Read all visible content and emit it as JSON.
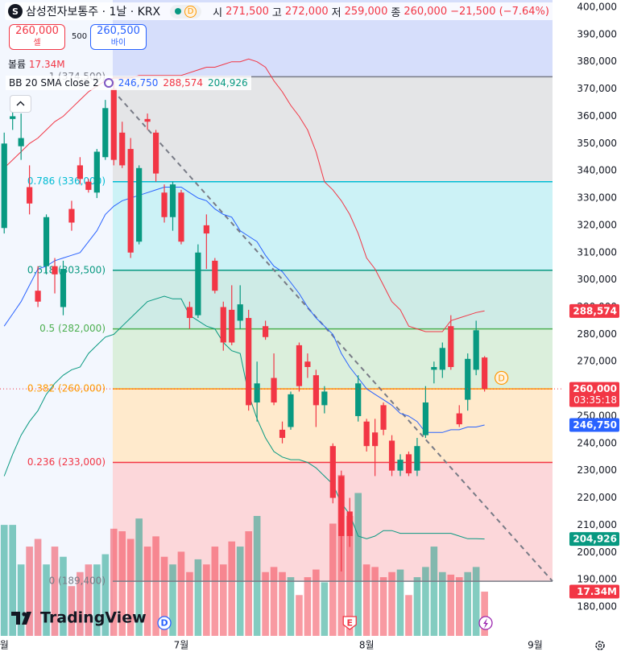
{
  "header": {
    "symbol_icon": "S",
    "title": "삼성전자보통주 · 1날 · KRX",
    "badge": "D",
    "open_label": "시",
    "open": "271,500",
    "high_label": "고",
    "high": "272,000",
    "low_label": "저",
    "low": "259,000",
    "close_label": "종",
    "close": "260,000",
    "change": "−21,500 (−7.64%)"
  },
  "trade": {
    "sell_price": "260,000",
    "sell_label": "셀",
    "spread": "500",
    "buy_price": "260,500",
    "buy_label": "바이"
  },
  "branding": "TradingView",
  "chart_data": {
    "type": "candlestick",
    "volume_label": "볼륨",
    "volume_value_label": "17.34M",
    "indicator": "BB 20 SMA close 2",
    "countdown": "03:35:18",
    "pending_marker": "D",
    "up_color": "#089981",
    "down_color": "#f23645",
    "xlim": [
      -0.5,
      66.4
    ],
    "xticks": [
      {
        "value": 0,
        "label": "월"
      },
      {
        "value": 21,
        "label": "7월"
      },
      {
        "value": 43,
        "label": "8월"
      },
      {
        "value": 63,
        "label": "9월"
      }
    ],
    "ylim": [
      180000,
      400000
    ],
    "yticks": [
      {
        "value": 400000,
        "label": "400,000"
      },
      {
        "value": 390000,
        "label": "390,000"
      },
      {
        "value": 380000,
        "label": "380,000"
      },
      {
        "value": 370000,
        "label": "370,000"
      },
      {
        "value": 360000,
        "label": "360,000"
      },
      {
        "value": 350000,
        "label": "350,000"
      },
      {
        "value": 340000,
        "label": "340,000"
      },
      {
        "value": 330000,
        "label": "330,000"
      },
      {
        "value": 320000,
        "label": "320,000"
      },
      {
        "value": 310000,
        "label": "310,000"
      },
      {
        "value": 300000,
        "label": "300,000"
      },
      {
        "value": 290000,
        "label": "290,000"
      },
      {
        "value": 280000,
        "label": "280,000"
      },
      {
        "value": 270000,
        "label": "270,000"
      },
      {
        "value": 260000,
        "label": "260,000"
      },
      {
        "value": 250000,
        "label": "250,000"
      },
      {
        "value": 240000,
        "label": "240,000"
      },
      {
        "value": 230000,
        "label": "230,000"
      },
      {
        "value": 220000,
        "label": "220,000"
      },
      {
        "value": 210000,
        "label": "210,000"
      },
      {
        "value": 200000,
        "label": "200,000"
      },
      {
        "value": 190000,
        "label": "190,000"
      },
      {
        "value": 180000,
        "label": "180,000"
      }
    ],
    "open": [
      319000,
      359000,
      349000,
      334000,
      296000,
      305000,
      305000,
      290000,
      326000,
      342000,
      336000,
      332000,
      345000,
      370000,
      354000,
      348000,
      314000,
      359000,
      354000,
      332000,
      323000,
      332000,
      290000,
      287000,
      320000,
      307000,
      290000,
      289000,
      285000,
      286000,
      255000,
      283000,
      264000,
      245000,
      246000,
      276000,
      270000,
      265000,
      254000,
      239000,
      228000,
      215000,
      250000,
      248000,
      244000,
      254000,
      241000,
      230000,
      236000,
      230000,
      243000,
      267000,
      267000,
      283000,
      251000,
      256000,
      267000,
      271500
    ],
    "high": [
      354000,
      364000,
      361000,
      342000,
      305000,
      324000,
      308000,
      307000,
      329000,
      345000,
      337000,
      348000,
      366000,
      373000,
      358000,
      352000,
      342000,
      361000,
      355000,
      335000,
      336000,
      333000,
      292000,
      313000,
      324000,
      308000,
      292000,
      298000,
      298000,
      289000,
      270000,
      285000,
      273000,
      248000,
      259000,
      277000,
      273000,
      267000,
      261000,
      240000,
      230000,
      220000,
      265000,
      249000,
      249000,
      255000,
      243000,
      236000,
      237000,
      242000,
      261000,
      270000,
      277000,
      287000,
      254000,
      273000,
      285000,
      272000
    ],
    "low": [
      317000,
      355000,
      344000,
      324000,
      290000,
      302000,
      295000,
      287000,
      318000,
      335000,
      332000,
      330000,
      344000,
      342000,
      341000,
      308000,
      313000,
      355000,
      336000,
      321000,
      318000,
      313000,
      282000,
      286000,
      304000,
      295000,
      274000,
      276000,
      282000,
      252000,
      248000,
      278000,
      254000,
      240000,
      245000,
      259000,
      264000,
      246000,
      251000,
      218000,
      193000,
      202000,
      248000,
      237000,
      228000,
      243000,
      228000,
      228000,
      228000,
      228000,
      242000,
      262000,
      264000,
      267000,
      246000,
      252000,
      265000,
      259000
    ],
    "close": [
      350000,
      360000,
      352000,
      328000,
      292000,
      323000,
      302000,
      304000,
      321000,
      337000,
      333000,
      347000,
      363000,
      344000,
      342000,
      310000,
      341000,
      358000,
      339000,
      323000,
      335000,
      314000,
      286000,
      310000,
      317000,
      296000,
      277000,
      277000,
      291000,
      254000,
      262000,
      279000,
      255000,
      242000,
      258000,
      261000,
      268000,
      254000,
      259000,
      220000,
      206000,
      206000,
      262000,
      239000,
      239000,
      245000,
      230000,
      234000,
      229000,
      239000,
      255000,
      268000,
      275000,
      268000,
      247000,
      271000,
      281500,
      260000
    ],
    "volume_ylim": [
      0,
      100
    ],
    "volume": [
      43.5,
      43.5,
      28,
      35,
      38,
      28,
      35,
      31,
      19.5,
      25,
      28,
      28,
      32,
      42,
      41,
      38,
      46,
      35,
      39,
      31,
      28,
      33,
      25,
      30,
      28,
      35,
      28,
      37,
      35,
      41,
      47,
      25,
      27,
      25,
      23,
      16,
      23,
      26,
      21,
      44,
      63,
      47,
      56,
      28,
      27,
      23,
      25,
      26,
      16,
      23,
      27,
      35,
      25,
      24,
      23,
      25,
      27,
      17.34
    ],
    "series": [
      {
        "color": "#2962ff",
        "last_label": "246,750",
        "values": [
          283000,
          287500,
          292000,
          298000,
          304000,
          305000,
          307000,
          308000,
          309000,
          310000,
          314000,
          318000,
          324000,
          327000,
          329000,
          330000,
          331000,
          332000,
          333000,
          334000,
          334000,
          334000,
          332000,
          330000,
          329000,
          326000,
          324000,
          323000,
          318000,
          316000,
          314000,
          309000,
          305000,
          303000,
          299000,
          295000,
          290000,
          286000,
          283000,
          280000,
          273000,
          268000,
          264000,
          260000,
          258000,
          256000,
          254000,
          251000,
          250000,
          248000,
          244000,
          244000,
          244000,
          245000,
          245000,
          246000,
          246000,
          246750
        ]
      },
      {
        "color": "#f23645",
        "last_label": "288,574",
        "values": [
          341000,
          344000,
          347000,
          350000,
          352000,
          355000,
          358000,
          360000,
          363000,
          366000,
          369000,
          371000,
          373000,
          374000,
          374000,
          374000,
          375000,
          375000,
          375000,
          375000,
          375000,
          375000,
          376000,
          377000,
          378000,
          378000,
          379000,
          380000,
          380000,
          381000,
          380000,
          378000,
          373000,
          369000,
          364000,
          360000,
          355000,
          347000,
          336000,
          333000,
          329000,
          324000,
          317000,
          308000,
          304000,
          298000,
          292000,
          289000,
          283000,
          282000,
          281000,
          281000,
          281000,
          285000,
          286000,
          287000,
          288000,
          288574
        ]
      },
      {
        "color": "#089981",
        "last_label": "204,926",
        "values": [
          228000,
          236000,
          243000,
          248000,
          252000,
          258000,
          262000,
          265000,
          267000,
          268000,
          273000,
          276000,
          279000,
          280000,
          283000,
          286000,
          289000,
          292000,
          293000,
          294000,
          293000,
          293000,
          287000,
          285000,
          283000,
          282000,
          277000,
          274000,
          273000,
          258000,
          249000,
          242000,
          237000,
          235000,
          234000,
          234000,
          233000,
          231000,
          228000,
          225000,
          218000,
          214000,
          206000,
          205000,
          206000,
          208000,
          208000,
          207000,
          207000,
          207000,
          207000,
          207000,
          207000,
          207000,
          206000,
          205000,
          205000,
          204926
        ]
      }
    ],
    "fib": [
      {
        "value": 374500,
        "label": "1 (374,500)",
        "color": "#787b86"
      },
      {
        "value": 336000,
        "label": "0.786 (336,000)",
        "color": "#00bcd4"
      },
      {
        "value": 303500,
        "label": "0.618 (303,500)",
        "color": "#089981"
      },
      {
        "value": 282000,
        "label": "0.5 (282,000)",
        "color": "#4caf50"
      },
      {
        "value": 260000,
        "label": "0.382 (260,000)",
        "color": "#ff9800"
      },
      {
        "value": 233000,
        "label": "0.236 (233,000)",
        "color": "#f23645"
      },
      {
        "value": 189400,
        "label": "0 (189,400)",
        "color": "#787b86"
      }
    ],
    "events": [
      {
        "label": "D",
        "index": 19
      },
      {
        "label": "E",
        "index": 41
      }
    ]
  }
}
